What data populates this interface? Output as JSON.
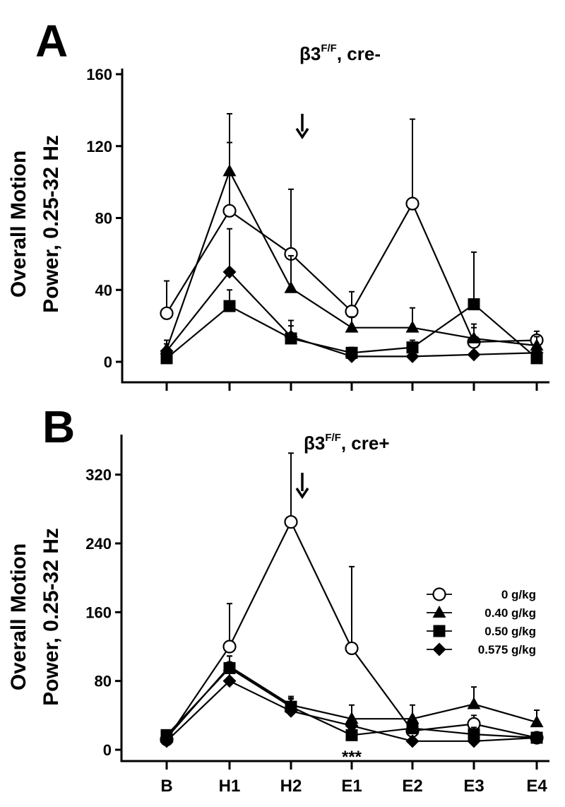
{
  "chart_data": [
    {
      "panel": "A",
      "type": "line",
      "title_main": "β3",
      "title_sup": "F/F",
      "title_rest": ", cre-",
      "ylabel_line1": "Overall Motion",
      "ylabel_line2": "Power, 0.25-32 Hz",
      "ylim": [
        0,
        160
      ],
      "yticks": [
        0,
        40,
        80,
        120,
        160
      ],
      "categories": [
        "B",
        "H1",
        "H2",
        "E1",
        "E2",
        "E3",
        "E4"
      ],
      "arrow_between": [
        "H2",
        "E1"
      ],
      "series": [
        {
          "name": "0 g/kg",
          "marker": "circle-open",
          "values": [
            27,
            84,
            60,
            28,
            88,
            11,
            12
          ],
          "err": [
            18,
            38,
            36,
            11,
            47,
            8,
            5
          ]
        },
        {
          "name": "0.40 g/kg",
          "marker": "triangle",
          "values": [
            7,
            106,
            41,
            19,
            19,
            13,
            9
          ],
          "err": [
            5,
            32,
            18,
            6,
            11,
            8,
            5
          ]
        },
        {
          "name": "0.50 g/kg",
          "marker": "square",
          "values": [
            2,
            31,
            13,
            5,
            8,
            32,
            2
          ],
          "err": [
            2,
            9,
            7,
            3,
            4,
            29,
            2
          ]
        },
        {
          "name": "0.575 g/kg",
          "marker": "diamond",
          "values": [
            6,
            50,
            14,
            3,
            3,
            4,
            5
          ],
          "err": [
            4,
            24,
            9,
            2,
            2,
            2,
            3
          ]
        }
      ]
    },
    {
      "panel": "B",
      "type": "line",
      "title_main": "β3",
      "title_sup": "F/F",
      "title_rest": ", cre+",
      "ylabel_line1": "Overall Motion",
      "ylabel_line2": "Power, 0.25-32 Hz",
      "ylim": [
        0,
        360
      ],
      "yticks": [
        0,
        80,
        160,
        240,
        320
      ],
      "categories": [
        "B",
        "H1",
        "H2",
        "E1",
        "E2",
        "E3",
        "E4"
      ],
      "arrow_between": [
        "H2",
        "E1"
      ],
      "annotation": {
        "text": "***",
        "category": "E1"
      },
      "series": [
        {
          "name": "0 g/kg",
          "marker": "circle-open",
          "values": [
            12,
            120,
            265,
            118,
            22,
            30,
            14
          ],
          "err": [
            6,
            50,
            80,
            95,
            12,
            10,
            5
          ]
        },
        {
          "name": "0.40 g/kg",
          "marker": "triangle",
          "values": [
            14,
            97,
            52,
            36,
            36,
            53,
            32
          ],
          "err": [
            7,
            12,
            10,
            16,
            16,
            20,
            14
          ]
        },
        {
          "name": "0.50 g/kg",
          "marker": "square",
          "values": [
            17,
            95,
            50,
            17,
            25,
            18,
            14
          ],
          "err": [
            6,
            14,
            9,
            6,
            8,
            8,
            5
          ]
        },
        {
          "name": "0.575 g/kg",
          "marker": "diamond",
          "values": [
            10,
            80,
            45,
            28,
            10,
            10,
            14
          ],
          "err": [
            5,
            22,
            15,
            10,
            5,
            5,
            5
          ]
        }
      ]
    }
  ],
  "legend": [
    {
      "marker": "circle-open",
      "label": "0 g/kg"
    },
    {
      "marker": "triangle",
      "label": "0.40 g/kg"
    },
    {
      "marker": "square",
      "label": "0.50 g/kg"
    },
    {
      "marker": "diamond",
      "label": "0.575 g/kg"
    }
  ]
}
